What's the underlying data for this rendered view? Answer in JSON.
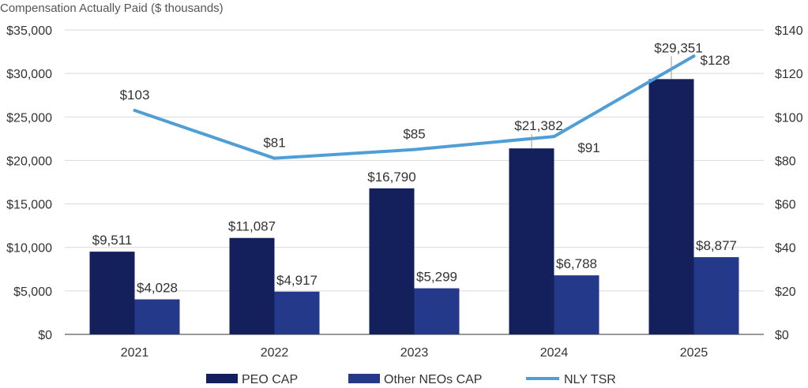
{
  "chart_data": {
    "type": "bar",
    "title": "Compensation Actually Paid ($ thousands)",
    "categories": [
      "2021",
      "2022",
      "2023",
      "2024",
      "2025"
    ],
    "series": [
      {
        "name": "PEO CAP",
        "kind": "bar",
        "axis": "left",
        "color": "#14205c",
        "values": [
          9511,
          11087,
          16790,
          21382,
          29351
        ],
        "labels": [
          "$9,511",
          "$11,087",
          "$16,790",
          "$21,382",
          "$29,351"
        ]
      },
      {
        "name": "Other NEOs CAP",
        "kind": "bar",
        "axis": "left",
        "color": "#24398a",
        "values": [
          4028,
          4917,
          5299,
          6788,
          8877
        ],
        "labels": [
          "$4,028",
          "$4,917",
          "$5,299",
          "$6,788",
          "$8,877"
        ]
      },
      {
        "name": "NLY TSR",
        "kind": "line",
        "axis": "right",
        "color": "#4f9fd6",
        "values": [
          103,
          81,
          85,
          91,
          128
        ],
        "labels": [
          "$103",
          "$81",
          "$85",
          "$91",
          "$128"
        ]
      }
    ],
    "y_left": {
      "ylim": [
        0,
        35000
      ],
      "ticks": [
        0,
        5000,
        10000,
        15000,
        20000,
        25000,
        30000,
        35000
      ],
      "tick_labels": [
        "$0",
        "$5,000",
        "$10,000",
        "$15,000",
        "$20,000",
        "$25,000",
        "$30,000",
        "$35,000"
      ]
    },
    "y_right": {
      "ylim": [
        0,
        140
      ],
      "ticks": [
        0,
        20,
        40,
        60,
        80,
        100,
        120,
        140
      ],
      "tick_labels": [
        "$0",
        "$20",
        "$40",
        "$60",
        "$80",
        "$100",
        "$120",
        "$140"
      ]
    },
    "grid": true,
    "legend": "bottom"
  }
}
